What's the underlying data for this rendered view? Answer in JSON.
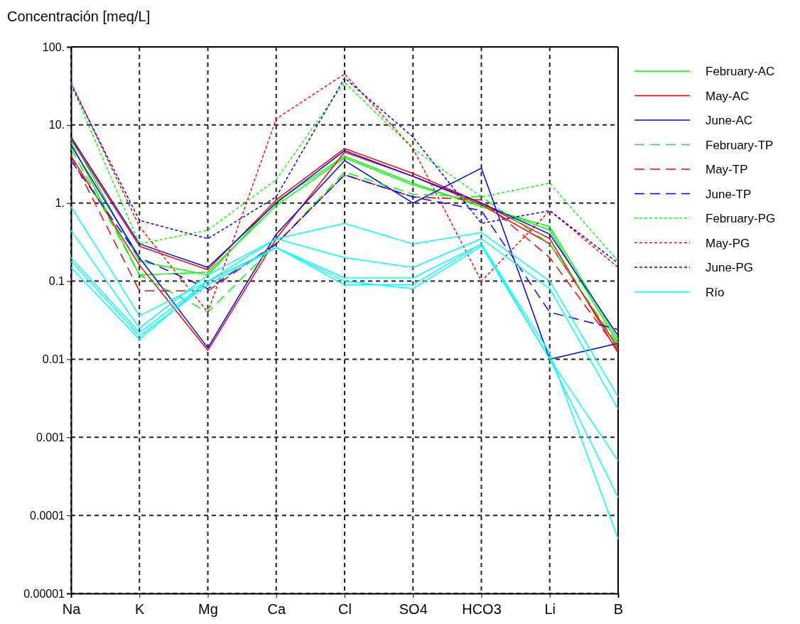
{
  "chart_data": {
    "type": "line",
    "ylabel": "Concentración [meq/L]",
    "categories": [
      "Na",
      "K",
      "Mg",
      "Ca",
      "Cl",
      "SO4",
      "HCO3",
      "Li",
      "B"
    ],
    "log": true,
    "ylim": [
      1e-05,
      100
    ],
    "yticks": [
      {
        "value": 100,
        "label": "100."
      },
      {
        "value": 10,
        "label": "10."
      },
      {
        "value": 1,
        "label": "1."
      },
      0.1,
      0.01,
      0.001,
      0.0001,
      {
        "value": 1e-05,
        "label": "0.00001"
      }
    ],
    "grid": true,
    "legend": "right",
    "marker": "none",
    "series": [
      {
        "name": "February-AC",
        "color": "#00ff00",
        "line_style": "solid",
        "values": [
          7,
          0.18,
          0.12,
          1.05,
          4,
          1.8,
          0.9,
          0.5,
          0.018
        ]
      },
      {
        "color": "#00ff00",
        "line_style": "solid",
        "values": [
          6,
          0.12,
          0.13,
          0.93,
          3.8,
          1.7,
          0.95,
          0.45,
          0.016
        ]
      },
      {
        "name": "May-AC",
        "color": "#ff0000",
        "line_style": "solid",
        "values": [
          6.5,
          0.28,
          0.14,
          1.1,
          5,
          2.4,
          1,
          0.35,
          0.012
        ]
      },
      {
        "color": "#ff0000",
        "line_style": "solid",
        "values": [
          4,
          0.16,
          0.013,
          0.35,
          4.5,
          2.2,
          0.95,
          0.3,
          0.014
        ]
      },
      {
        "name": "June-AC",
        "color": "#0000ff",
        "line_style": "solid",
        "values": [
          7,
          0.3,
          0.15,
          1,
          4.7,
          2.2,
          1,
          0.4,
          0.02
        ]
      },
      {
        "color": "#0000ff",
        "line_style": "solid",
        "values": [
          5.5,
          0.2,
          0.014,
          0.4,
          3.5,
          1,
          2.8,
          0.01,
          0.016
        ]
      },
      {
        "name": "February-TP",
        "color": "#00ff00",
        "line_style": "dashed",
        "values": [
          5,
          0.12,
          0.04,
          0.3,
          2.5,
          1.3,
          1.2,
          0.3,
          0.015
        ]
      },
      {
        "name": "May-TP",
        "color": "#ff0000",
        "line_style": "dashed",
        "values": [
          4,
          0.075,
          0.075,
          0.3,
          2.3,
          1.2,
          1.1,
          0.2,
          0.013
        ]
      },
      {
        "name": "June-TP",
        "color": "#0000ff",
        "line_style": "dashed",
        "values": [
          3.5,
          0.2,
          0.08,
          0.3,
          2.3,
          1.2,
          0.8,
          0.04,
          0.024
        ]
      },
      {
        "name": "February-PG",
        "color": "#00ff00",
        "line_style": "dotted",
        "values": [
          33,
          0.3,
          0.45,
          2,
          35,
          5,
          1.2,
          1.8,
          0.18
        ]
      },
      {
        "name": "May-PG",
        "color": "#ff0000",
        "line_style": "dotted",
        "values": [
          35,
          0.5,
          0.04,
          12,
          45,
          5,
          0.1,
          0.8,
          0.15
        ]
      },
      {
        "name": "June-PG",
        "color": "#0000ff",
        "line_style": "dotted",
        "values": [
          33,
          0.6,
          0.35,
          1.2,
          40,
          7,
          0.55,
          0.8,
          0.17
        ]
      },
      {
        "name": "Río",
        "color": "#00ffff",
        "line_style": "solid",
        "values": [
          0.9,
          0.036,
          0.1,
          0.35,
          0.55,
          0.3,
          0.42,
          0.1,
          0.0033
        ]
      },
      {
        "color": "#00ffff",
        "line_style": "solid",
        "values": [
          0.45,
          0.025,
          0.12,
          0.35,
          0.2,
          0.15,
          0.35,
          0.08,
          0.0023
        ]
      },
      {
        "color": "#00ffff",
        "line_style": "solid",
        "values": [
          0.2,
          0.022,
          0.1,
          0.27,
          0.11,
          0.11,
          0.3,
          0.01,
          0.0005
        ]
      },
      {
        "color": "#00ffff",
        "line_style": "solid",
        "values": [
          0.18,
          0.02,
          0.09,
          0.27,
          0.1,
          0.08,
          0.28,
          0.01,
          0.00017
        ]
      },
      {
        "color": "#00ffff",
        "line_style": "solid",
        "values": [
          0.15,
          0.018,
          0.1,
          0.27,
          0.09,
          0.09,
          0.3,
          0.012,
          5e-05
        ]
      }
    ]
  }
}
